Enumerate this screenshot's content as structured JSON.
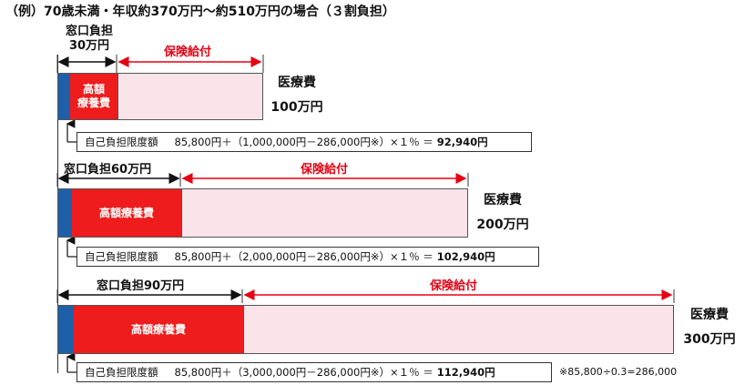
{
  "title": "（例）70歳未満・年収約370万円～約510万円の場合（３割負担）",
  "rows": [
    {
      "window_label_line1": "窓口負担",
      "window_label_line2": "30万円",
      "insurance_label": "保険給付",
      "high_cost_line1": "高額",
      "high_cost_line2": "療養費",
      "medical_label": "医療費",
      "medical_amount": "100万円",
      "limit_label": "自己負担限度額",
      "formula": "85,800円＋（1,000,000円－286,000円※）×１％ ＝",
      "result": "92,940円"
    },
    {
      "window_label": "窓口負担60万円",
      "insurance_label": "保険給付",
      "high_cost_label": "高額療養費",
      "medical_label": "医療費",
      "medical_amount": "200万円",
      "limit_label": "自己負担限度額",
      "formula": "85,800円＋（2,000,000円－286,000円※）×１％ ＝",
      "result": "102,940円"
    },
    {
      "window_label": "窓口負担90万円",
      "insurance_label": "保険給付",
      "high_cost_label": "高額療養費",
      "medical_label": "医療費",
      "medical_amount": "300万円",
      "limit_label": "自己負担限度額",
      "formula": "85,800円＋（3,000,000円－286,000円※）×１％ ＝",
      "result": "112,940円"
    }
  ],
  "footnote": "※85,800÷0.3=286,000",
  "colors": {
    "blue": "#1f5fa8",
    "red": "#ee1c1c",
    "pink": "#fbe3ea",
    "arrow_red": "#e60012"
  }
}
